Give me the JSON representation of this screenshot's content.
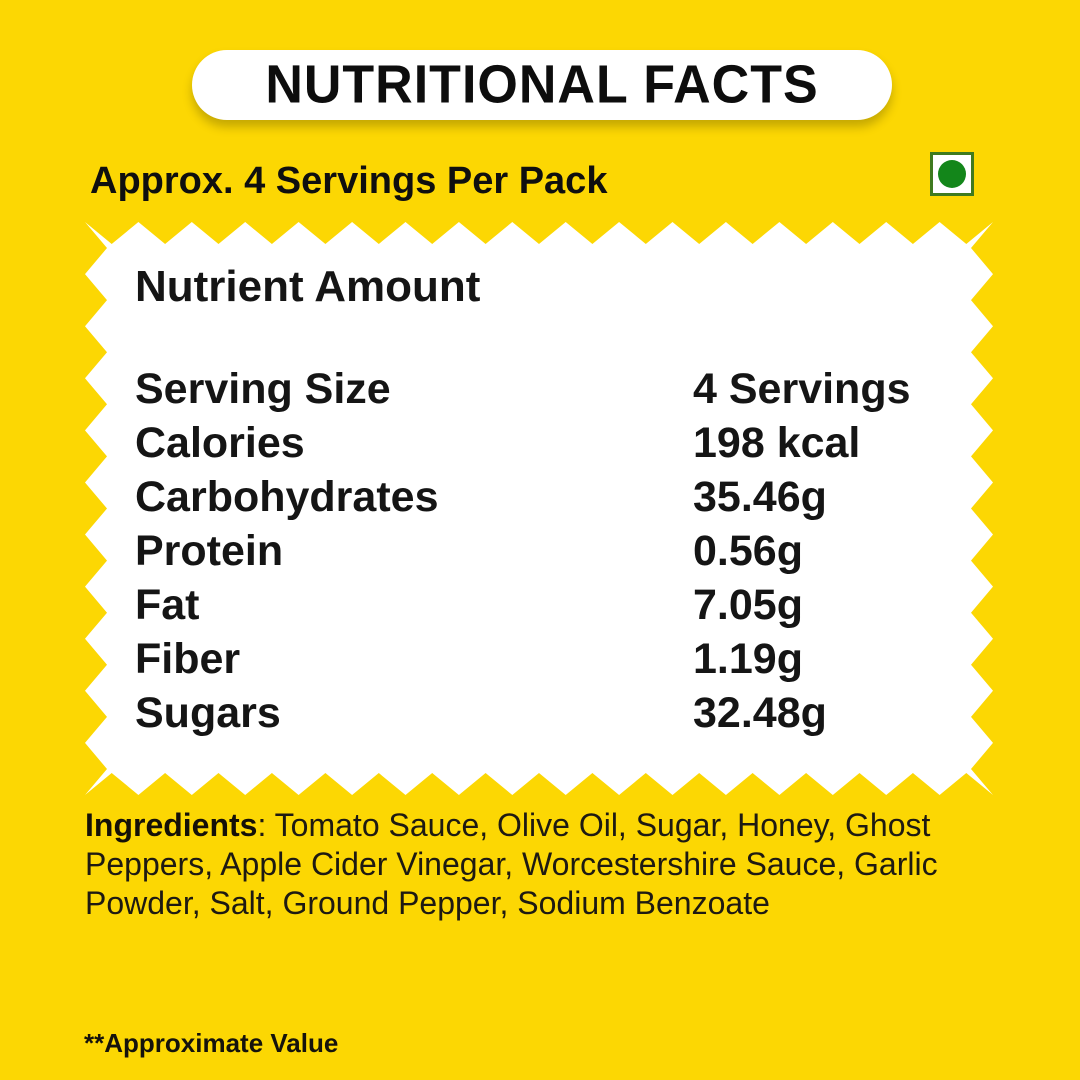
{
  "colors": {
    "background": "#FCD703",
    "panel": "#FFFFFF",
    "veg_circle": "#13861A",
    "veg_border": "#3F7A1F"
  },
  "header": {
    "title": "NUTRITIONAL FACTS",
    "servings_note": "Approx. 4 Servings Per Pack"
  },
  "icons": {
    "veg_mark": "green-dot-vegetarian-indicator"
  },
  "panel": {
    "columns_header": "Nutrient Amount",
    "rows": [
      {
        "nutrient": "Serving Size",
        "amount": "4 Servings"
      },
      {
        "nutrient": "Calories",
        "amount": "198 kcal"
      },
      {
        "nutrient": "Carbohydrates",
        "amount": "35.46g"
      },
      {
        "nutrient": "Protein",
        "amount": "0.56g"
      },
      {
        "nutrient": "Fat",
        "amount": "7.05g"
      },
      {
        "nutrient": "Fiber",
        "amount": "1.19g"
      },
      {
        "nutrient": "Sugars",
        "amount": "32.48g"
      }
    ]
  },
  "ingredients": {
    "label": "Ingredients",
    "line1_rest": ": Tomato Sauce, Olive Oil, Sugar, Honey, Ghost",
    "line2": "Peppers, Apple Cider Vinegar, Worcestershire Sauce, Garlic",
    "line3": "Powder, Salt, Ground Pepper, Sodium Benzoate"
  },
  "footnote": "**Approximate Value"
}
